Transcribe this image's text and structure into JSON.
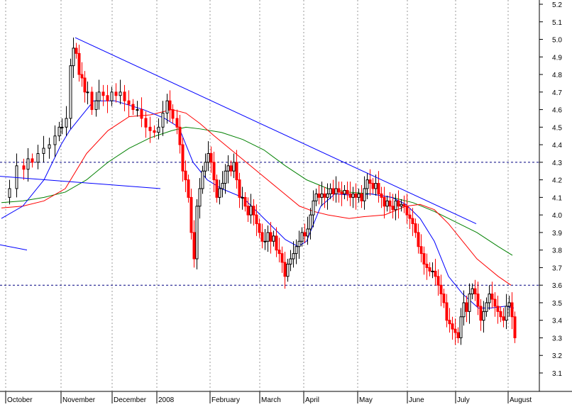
{
  "chart_data": {
    "type": "candlestick",
    "title": "",
    "xlabel": "",
    "ylabel": "",
    "ylim": [
      3.0,
      5.2
    ],
    "y_ticks": [
      3.1,
      3.2,
      3.3,
      3.4,
      3.5,
      3.6,
      3.7,
      3.8,
      3.9,
      4.0,
      4.1,
      4.2,
      4.3,
      4.4,
      4.5,
      4.6,
      4.7,
      4.8,
      4.9,
      5.0,
      5.1,
      5.2
    ],
    "y_tick_labels": [
      "3.1",
      "3.2",
      "3.3",
      "3.4",
      "3.5",
      "3.6",
      "3.7",
      "3.8",
      "3.9",
      "4.0",
      "4.1",
      "4.2",
      "4.3",
      "4.4",
      "4.5",
      "4.6",
      "4.7",
      "4.8",
      "4.9",
      "5.0",
      "5.1",
      "5.2"
    ],
    "y_axis_position": "right",
    "months": [
      "October",
      "November",
      "December",
      "2008",
      "February",
      "March",
      "April",
      "May",
      "June",
      "July",
      "August"
    ],
    "grid": "vertical dotted at month boundaries",
    "colors": {
      "up": "#000000",
      "down": "#ff0000",
      "ma_short": "#0000ff",
      "ma_mid": "#ff0000",
      "ma_long": "#008000",
      "trendline": "#0000ff",
      "level": "#000080"
    },
    "horizontal_levels": [
      4.3,
      3.6
    ],
    "trendlines": [
      {
        "from": [
          "November",
          5.01
        ],
        "to": [
          "late June",
          3.95
        ]
      },
      {
        "from": [
          "October",
          4.22
        ],
        "to": [
          "December",
          4.15
        ]
      },
      {
        "from": [
          "September",
          3.83
        ],
        "to": [
          "October",
          3.8
        ]
      }
    ],
    "price_path": [
      [
        0,
        4.1
      ],
      [
        10,
        4.15
      ],
      [
        20,
        4.28
      ],
      [
        30,
        4.26
      ],
      [
        36,
        4.32
      ],
      [
        42,
        4.3
      ],
      [
        50,
        4.35
      ],
      [
        58,
        4.38
      ],
      [
        66,
        4.4
      ],
      [
        74,
        4.45
      ],
      [
        80,
        4.5
      ],
      [
        84,
        4.5
      ],
      [
        90,
        4.55
      ],
      [
        96,
        4.85
      ],
      [
        100,
        4.95
      ],
      [
        104,
        4.92
      ],
      [
        108,
        4.8
      ],
      [
        112,
        4.78
      ],
      [
        116,
        4.7
      ],
      [
        120,
        4.7
      ],
      [
        126,
        4.6
      ],
      [
        132,
        4.65
      ],
      [
        136,
        4.7
      ],
      [
        142,
        4.68
      ],
      [
        148,
        4.65
      ],
      [
        154,
        4.7
      ],
      [
        160,
        4.68
      ],
      [
        166,
        4.7
      ],
      [
        172,
        4.65
      ],
      [
        178,
        4.63
      ],
      [
        184,
        4.6
      ],
      [
        190,
        4.6
      ],
      [
        196,
        4.55
      ],
      [
        202,
        4.5
      ],
      [
        208,
        4.48
      ],
      [
        214,
        4.47
      ],
      [
        220,
        4.5
      ],
      [
        226,
        4.58
      ],
      [
        232,
        4.65
      ],
      [
        236,
        4.6
      ],
      [
        240,
        4.55
      ],
      [
        246,
        4.5
      ],
      [
        250,
        4.4
      ],
      [
        254,
        4.25
      ],
      [
        258,
        4.2
      ],
      [
        262,
        4.1
      ],
      [
        266,
        3.9
      ],
      [
        270,
        3.75
      ],
      [
        274,
        4.05
      ],
      [
        278,
        4.15
      ],
      [
        282,
        4.25
      ],
      [
        286,
        4.3
      ],
      [
        290,
        4.35
      ],
      [
        294,
        4.3
      ],
      [
        298,
        4.2
      ],
      [
        302,
        4.1
      ],
      [
        306,
        4.15
      ],
      [
        310,
        4.18
      ],
      [
        314,
        4.25
      ],
      [
        318,
        4.28
      ],
      [
        322,
        4.25
      ],
      [
        326,
        4.3
      ],
      [
        330,
        4.2
      ],
      [
        334,
        4.1
      ],
      [
        338,
        4.1
      ],
      [
        342,
        4.05
      ],
      [
        346,
        4.0
      ],
      [
        350,
        4.05
      ],
      [
        354,
        4.0
      ],
      [
        358,
        3.95
      ],
      [
        362,
        3.9
      ],
      [
        366,
        3.85
      ],
      [
        370,
        3.85
      ],
      [
        374,
        3.9
      ],
      [
        378,
        3.85
      ],
      [
        382,
        3.88
      ],
      [
        386,
        3.8
      ],
      [
        390,
        3.78
      ],
      [
        394,
        3.73
      ],
      [
        398,
        3.65
      ],
      [
        402,
        3.72
      ],
      [
        406,
        3.75
      ],
      [
        410,
        3.78
      ],
      [
        414,
        3.82
      ],
      [
        418,
        3.85
      ],
      [
        422,
        3.9
      ],
      [
        426,
        3.88
      ],
      [
        430,
        3.92
      ],
      [
        434,
        4.0
      ],
      [
        438,
        4.08
      ],
      [
        442,
        4.12
      ],
      [
        446,
        4.1
      ],
      [
        450,
        4.12
      ],
      [
        454,
        4.1
      ],
      [
        458,
        4.12
      ],
      [
        462,
        4.15
      ],
      [
        466,
        4.12
      ],
      [
        470,
        4.15
      ],
      [
        474,
        4.13
      ],
      [
        478,
        4.12
      ],
      [
        482,
        4.14
      ],
      [
        486,
        4.12
      ],
      [
        490,
        4.1
      ],
      [
        494,
        4.12
      ],
      [
        498,
        4.1
      ],
      [
        502,
        4.12
      ],
      [
        506,
        4.08
      ],
      [
        510,
        4.15
      ],
      [
        514,
        4.2
      ],
      [
        518,
        4.18
      ],
      [
        522,
        4.15
      ],
      [
        526,
        4.18
      ],
      [
        530,
        4.12
      ],
      [
        534,
        4.1
      ],
      [
        538,
        4.05
      ],
      [
        542,
        4.08
      ],
      [
        546,
        4.05
      ],
      [
        550,
        4.03
      ],
      [
        554,
        4.08
      ],
      [
        558,
        4.05
      ],
      [
        562,
        4.06
      ],
      [
        566,
        4.05
      ],
      [
        570,
        4.0
      ],
      [
        574,
        3.98
      ],
      [
        578,
        3.95
      ],
      [
        582,
        3.9
      ],
      [
        586,
        3.82
      ],
      [
        590,
        3.78
      ],
      [
        594,
        3.72
      ],
      [
        598,
        3.7
      ],
      [
        602,
        3.68
      ],
      [
        606,
        3.68
      ],
      [
        610,
        3.65
      ],
      [
        614,
        3.6
      ],
      [
        618,
        3.55
      ],
      [
        622,
        3.5
      ],
      [
        626,
        3.4
      ],
      [
        630,
        3.38
      ],
      [
        634,
        3.35
      ],
      [
        638,
        3.33
      ],
      [
        642,
        3.3
      ],
      [
        646,
        3.42
      ],
      [
        650,
        3.5
      ],
      [
        654,
        3.45
      ],
      [
        658,
        3.55
      ],
      [
        662,
        3.58
      ],
      [
        666,
        3.55
      ],
      [
        670,
        3.48
      ],
      [
        674,
        3.4
      ],
      [
        678,
        3.45
      ],
      [
        682,
        3.5
      ],
      [
        686,
        3.55
      ],
      [
        690,
        3.52
      ],
      [
        694,
        3.48
      ],
      [
        698,
        3.45
      ],
      [
        702,
        3.42
      ],
      [
        706,
        3.4
      ],
      [
        710,
        3.48
      ],
      [
        714,
        3.5
      ],
      [
        718,
        3.42
      ],
      [
        722,
        3.3
      ]
    ],
    "ma_short": [
      [
        0,
        3.98
      ],
      [
        30,
        4.05
      ],
      [
        60,
        4.2
      ],
      [
        84,
        4.4
      ],
      [
        96,
        4.48
      ],
      [
        110,
        4.55
      ],
      [
        130,
        4.65
      ],
      [
        160,
        4.65
      ],
      [
        200,
        4.6
      ],
      [
        230,
        4.55
      ],
      [
        250,
        4.5
      ],
      [
        270,
        4.3
      ],
      [
        290,
        4.2
      ],
      [
        310,
        4.15
      ],
      [
        340,
        4.1
      ],
      [
        370,
        3.98
      ],
      [
        400,
        3.86
      ],
      [
        418,
        3.82
      ],
      [
        430,
        3.85
      ],
      [
        450,
        4.05
      ],
      [
        470,
        4.12
      ],
      [
        500,
        4.11
      ],
      [
        520,
        4.12
      ],
      [
        550,
        4.1
      ],
      [
        570,
        4.06
      ],
      [
        590,
        3.98
      ],
      [
        610,
        3.85
      ],
      [
        630,
        3.65
      ],
      [
        650,
        3.55
      ],
      [
        672,
        3.47
      ],
      [
        690,
        3.47
      ],
      [
        710,
        3.48
      ],
      [
        722,
        3.47
      ]
    ],
    "ma_mid": [
      [
        0,
        4.04
      ],
      [
        30,
        4.05
      ],
      [
        60,
        4.08
      ],
      [
        90,
        4.15
      ],
      [
        120,
        4.35
      ],
      [
        150,
        4.48
      ],
      [
        180,
        4.56
      ],
      [
        210,
        4.57
      ],
      [
        240,
        4.6
      ],
      [
        260,
        4.58
      ],
      [
        280,
        4.52
      ],
      [
        300,
        4.45
      ],
      [
        330,
        4.35
      ],
      [
        360,
        4.25
      ],
      [
        390,
        4.15
      ],
      [
        420,
        4.05
      ],
      [
        440,
        4.02
      ],
      [
        460,
        4.0
      ],
      [
        490,
        3.98
      ],
      [
        510,
        3.99
      ],
      [
        540,
        4.0
      ],
      [
        570,
        4.05
      ],
      [
        590,
        4.06
      ],
      [
        610,
        4.03
      ],
      [
        630,
        3.95
      ],
      [
        650,
        3.85
      ],
      [
        670,
        3.75
      ],
      [
        700,
        3.65
      ],
      [
        718,
        3.6
      ]
    ],
    "ma_long": [
      [
        0,
        4.07
      ],
      [
        30,
        4.08
      ],
      [
        60,
        4.1
      ],
      [
        90,
        4.13
      ],
      [
        120,
        4.2
      ],
      [
        150,
        4.3
      ],
      [
        180,
        4.38
      ],
      [
        210,
        4.44
      ],
      [
        240,
        4.48
      ],
      [
        260,
        4.5
      ],
      [
        280,
        4.49
      ],
      [
        310,
        4.47
      ],
      [
        340,
        4.43
      ],
      [
        370,
        4.37
      ],
      [
        400,
        4.28
      ],
      [
        430,
        4.2
      ],
      [
        460,
        4.15
      ],
      [
        490,
        4.13
      ],
      [
        520,
        4.12
      ],
      [
        550,
        4.1
      ],
      [
        580,
        4.07
      ],
      [
        610,
        4.02
      ],
      [
        640,
        3.96
      ],
      [
        670,
        3.9
      ],
      [
        700,
        3.82
      ],
      [
        720,
        3.77
      ]
    ]
  }
}
